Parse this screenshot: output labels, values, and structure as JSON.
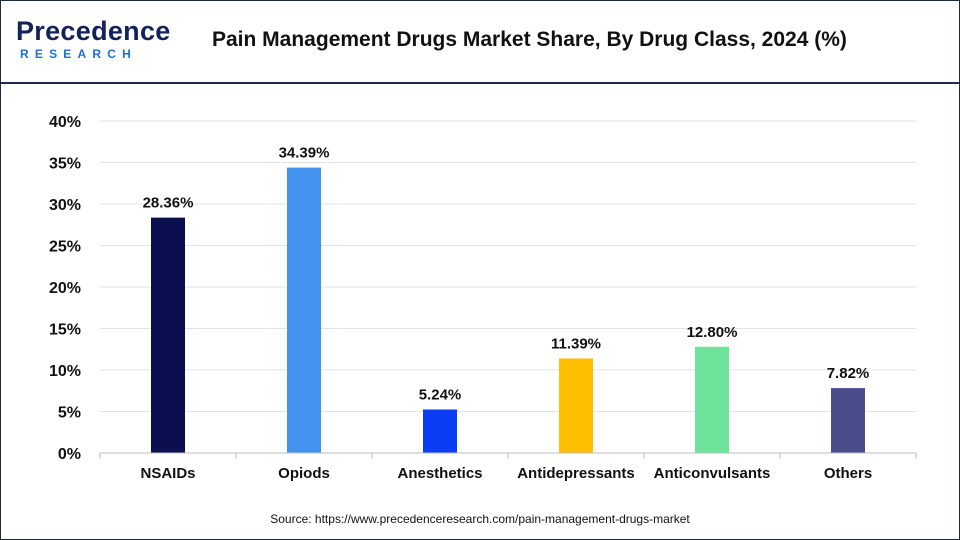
{
  "header": {
    "logo_main": "Precedence",
    "logo_sub": "RESEARCH",
    "title": "Pain Management Drugs Market Share, By Drug Class, 2024 (%)"
  },
  "source": "Source: https://www.precedenceresearch.com/pain-management-drugs-market",
  "chart_data": {
    "type": "bar",
    "title": "Pain Management Drugs Market Share, By Drug Class, 2024 (%)",
    "xlabel": "",
    "ylabel": "",
    "categories": [
      "NSAIDs",
      "Opiods",
      "Anesthetics",
      "Antidepressants",
      "Anticonvulsants",
      "Others"
    ],
    "values": [
      28.36,
      34.39,
      5.24,
      11.39,
      12.8,
      7.82
    ],
    "value_labels": [
      "28.36%",
      "34.39%",
      "5.24%",
      "11.39%",
      "12.80%",
      "7.82%"
    ],
    "colors": [
      "#0b0f4f",
      "#4393ef",
      "#0b3df5",
      "#fdbf00",
      "#6ee39c",
      "#4a4d8c"
    ],
    "ylim": [
      0,
      40
    ],
    "yticks": [
      0,
      5,
      10,
      15,
      20,
      25,
      30,
      35,
      40
    ],
    "ytick_labels": [
      "0%",
      "5%",
      "10%",
      "15%",
      "20%",
      "25%",
      "30%",
      "35%",
      "40%"
    ],
    "grid": true,
    "legend": "none"
  }
}
